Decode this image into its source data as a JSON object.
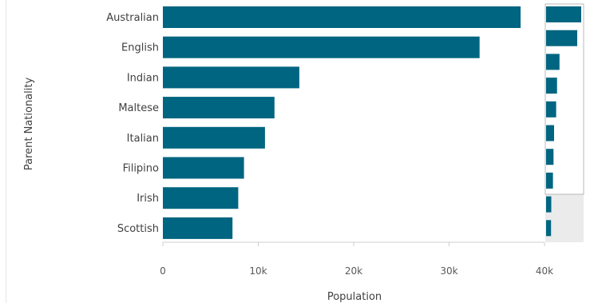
{
  "chart_data": {
    "type": "bar",
    "orientation": "horizontal",
    "categories": [
      "Australian",
      "English",
      "Indian",
      "Maltese",
      "Italian",
      "Filipino",
      "Irish",
      "Scottish"
    ],
    "values": [
      37500,
      33200,
      14300,
      11700,
      10700,
      8500,
      7900,
      7300
    ],
    "xlabel": "Population",
    "ylabel": "Parent Nationality",
    "xlim": [
      0,
      40000
    ],
    "xticks": [
      {
        "value": 0,
        "label": "0"
      },
      {
        "value": 10000,
        "label": "10k"
      },
      {
        "value": 20000,
        "label": "20k"
      },
      {
        "value": 30000,
        "label": "30k"
      },
      {
        "value": 40000,
        "label": "40k"
      }
    ],
    "bar_color": "#006580",
    "grid": false,
    "minimap": {
      "visible_count": 8,
      "extra_values": [
        5500,
        5300
      ]
    }
  }
}
